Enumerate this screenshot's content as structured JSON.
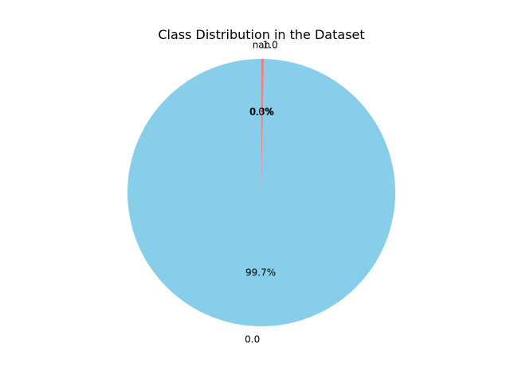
{
  "chart_data": {
    "type": "pie",
    "title": "Class Distribution in the Dataset",
    "labels": [
      "0.0",
      "1.0",
      "nan"
    ],
    "percent_labels": [
      "99.7%",
      "0.3%",
      "0.0%"
    ],
    "values": [
      99.7,
      0.3,
      0.0
    ],
    "colors": [
      "#87ceeb",
      "#f08080",
      "#98fb98"
    ],
    "start_angle_deg": 90,
    "legend": "none"
  }
}
